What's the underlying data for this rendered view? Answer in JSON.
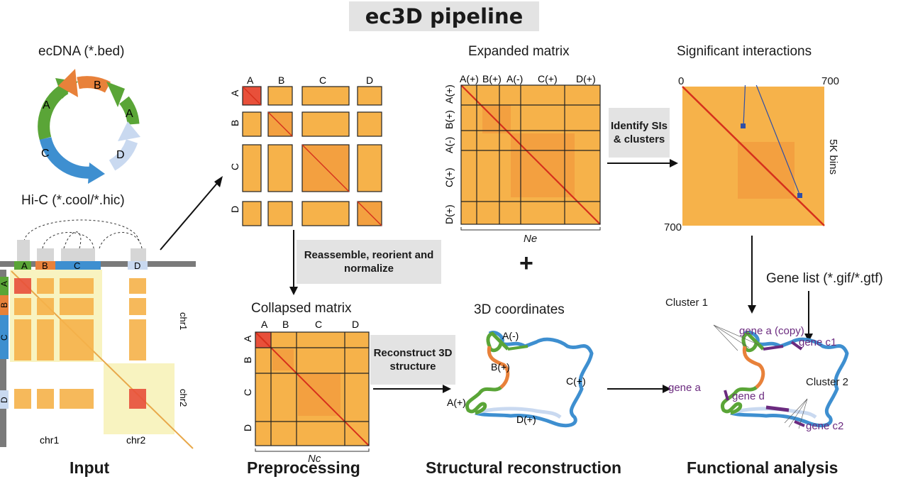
{
  "title": "ec3D pipeline",
  "input": {
    "ecdna_label": "ecDNA (*.bed)",
    "circle_segments": [
      "A",
      "B",
      "A",
      "D",
      "C"
    ],
    "hic_label": "Hi-C (*.cool/*.hic)",
    "track_segments": [
      "A",
      "B",
      "C",
      "D"
    ],
    "side_segments": [
      "A",
      "B",
      "C",
      "D"
    ],
    "chr_right": [
      "chr1",
      "chr2"
    ],
    "chr_bottom": [
      "chr1",
      "chr2"
    ],
    "section": "Input"
  },
  "preprocessing": {
    "block_cols": [
      "A",
      "B",
      "C",
      "D"
    ],
    "block_rows": [
      "A",
      "B",
      "C",
      "D"
    ],
    "step_label": "Reassemble, reorient and normalize",
    "collapsed_title": "Collapsed matrix",
    "collapsed_cols": [
      "A",
      "B",
      "C",
      "D"
    ],
    "collapsed_rows": [
      "A",
      "B",
      "C",
      "D"
    ],
    "nc_label": "Nc",
    "section": "Preprocessing"
  },
  "structural": {
    "expanded_title": "Expanded matrix",
    "expanded_cols": [
      "A(+)",
      "B(+)",
      "A(-)",
      "C(+)",
      "D(+)"
    ],
    "expanded_rows": [
      "A(+)",
      "B(+)",
      "A(-)",
      "C(+)",
      "D(+)"
    ],
    "ne_label": "Ne",
    "plus": "+",
    "reconstruct_label": "Reconstruct 3D structure",
    "coords_title": "3D coordinates",
    "coord_labels": [
      "A(-)",
      "B(+)",
      "C(+)",
      "A(+)",
      "D(+)"
    ],
    "section": "Structural reconstruction"
  },
  "functional": {
    "identify_label": "Identify SIs & clusters",
    "si_title": "Significant interactions",
    "axis_start": "0",
    "axis_end": "700",
    "axis_left_bottom": "700",
    "bins_label": "5K bins",
    "gene_list_label": "Gene list (*.gif/*.gtf)",
    "cluster1": "Cluster 1",
    "cluster2": "Cluster 2",
    "genes": [
      "gene a (copy)",
      "gene c1",
      "gene a",
      "gene d",
      "gene c2"
    ],
    "section": "Functional analysis"
  },
  "colors": {
    "segA": "#5aa537",
    "segB": "#e8813a",
    "segC": "#3e8fd0",
    "segD": "#c9d9f0",
    "heat_low": "#f6b24a",
    "heat_high": "#d6301c",
    "gene": "#6b2a7f",
    "highlight": "#f8f3c0",
    "si_marker": "#2e4fa8"
  }
}
